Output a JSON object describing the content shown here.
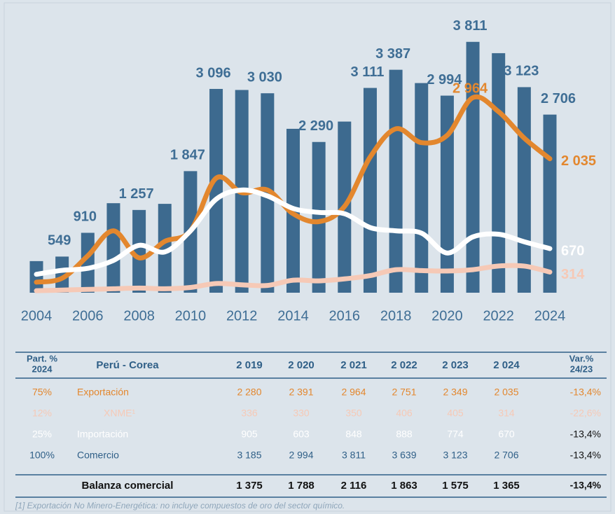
{
  "chart_data": {
    "type": "bar-line",
    "x": [
      2004,
      2005,
      2006,
      2007,
      2008,
      2009,
      2010,
      2011,
      2012,
      2013,
      2014,
      2015,
      2016,
      2017,
      2018,
      2019,
      2020,
      2021,
      2022,
      2023,
      2024
    ],
    "xlim": [
      2003.5,
      2024.5
    ],
    "xticks": [
      2004,
      2006,
      2008,
      2010,
      2012,
      2014,
      2016,
      2018,
      2020,
      2022,
      2024
    ],
    "ylim": [
      0,
      4000
    ],
    "series": [
      {
        "name": "Comercio",
        "kind": "bar",
        "color": "#3d6a8f",
        "values": [
          480,
          549,
          910,
          1360,
          1257,
          1350,
          1847,
          3096,
          3080,
          3030,
          2490,
          2290,
          2600,
          3111,
          3387,
          3185,
          2994,
          3811,
          3639,
          3123,
          2706
        ],
        "value_labels": [
          null,
          "549",
          "910",
          null,
          "1 257",
          null,
          "1 847",
          "3 096",
          null,
          "3 030",
          null,
          "2 290",
          null,
          "3 111",
          "3 387",
          null,
          "2 994",
          "3 811",
          null,
          "3 123",
          "2 706"
        ]
      },
      {
        "name": "Exportación",
        "kind": "line",
        "color": "#e3872e",
        "values": [
          160,
          220,
          560,
          940,
          530,
          780,
          940,
          1740,
          1520,
          1560,
          1200,
          1080,
          1310,
          2060,
          2490,
          2280,
          2391,
          2964,
          2751,
          2349,
          2035
        ],
        "value_labels": [
          null,
          null,
          null,
          null,
          null,
          null,
          null,
          null,
          null,
          null,
          null,
          null,
          null,
          null,
          null,
          null,
          null,
          "2 964",
          null,
          null,
          "2 035"
        ]
      },
      {
        "name": "Importación",
        "kind": "line",
        "color": "#ffffff",
        "values": [
          280,
          340,
          370,
          490,
          720,
          620,
          940,
          1420,
          1560,
          1470,
          1280,
          1220,
          1200,
          990,
          940,
          905,
          603,
          848,
          888,
          774,
          670
        ],
        "value_labels": [
          null,
          null,
          null,
          null,
          null,
          null,
          null,
          null,
          null,
          null,
          null,
          null,
          null,
          null,
          null,
          null,
          null,
          null,
          null,
          null,
          "670"
        ]
      },
      {
        "name": "XNME",
        "kind": "line",
        "color": "#f6c9b6",
        "values": [
          30,
          40,
          50,
          60,
          70,
          60,
          80,
          140,
          120,
          110,
          190,
          180,
          210,
          260,
          350,
          336,
          330,
          350,
          406,
          405,
          314
        ],
        "value_labels": [
          null,
          null,
          null,
          null,
          null,
          null,
          null,
          null,
          null,
          null,
          null,
          null,
          null,
          null,
          null,
          null,
          null,
          null,
          null,
          null,
          "314"
        ]
      }
    ]
  },
  "table": {
    "header": [
      [
        "Part. %",
        "2024"
      ],
      [
        "Perú - Corea"
      ],
      [
        "2 019"
      ],
      [
        "2 020"
      ],
      [
        "2 021"
      ],
      [
        "2 022"
      ],
      [
        "2 023"
      ],
      [
        "2 024"
      ],
      [
        "Var.%",
        "24/23"
      ]
    ],
    "rows": [
      {
        "part": "75%",
        "name": "Exportación",
        "values": [
          "2 280",
          "2 391",
          "2 964",
          "2 751",
          "2 349",
          "2 035"
        ],
        "var": "-13,4%",
        "color": "#e3872e"
      },
      {
        "part": "12%",
        "name": "XNME¹",
        "values": [
          "336",
          "330",
          "350",
          "406",
          "405",
          "314"
        ],
        "var": "-22,6%",
        "color": "#f6c9b6"
      },
      {
        "part": "25%",
        "name": "Importación",
        "values": [
          "905",
          "603",
          "848",
          "888",
          "774",
          "670"
        ],
        "var": "-13,4%",
        "color": "#ffffff"
      },
      {
        "part": "100%",
        "name": "Comercio",
        "values": [
          "3 185",
          "2 994",
          "3 811",
          "3 639",
          "3 123",
          "2 706"
        ],
        "var": "-13,4%",
        "color": "#2f5f87"
      },
      {
        "name": "Balanza comercial",
        "values": [
          "1 375",
          "1 788",
          "2 116",
          "1 863",
          "1 575",
          "1 365"
        ],
        "var": "-13,4%",
        "color": "#111111"
      }
    ],
    "footnote": "[1] Exportación No Minero-Energética: no incluye compuestos de oro del sector químico."
  }
}
